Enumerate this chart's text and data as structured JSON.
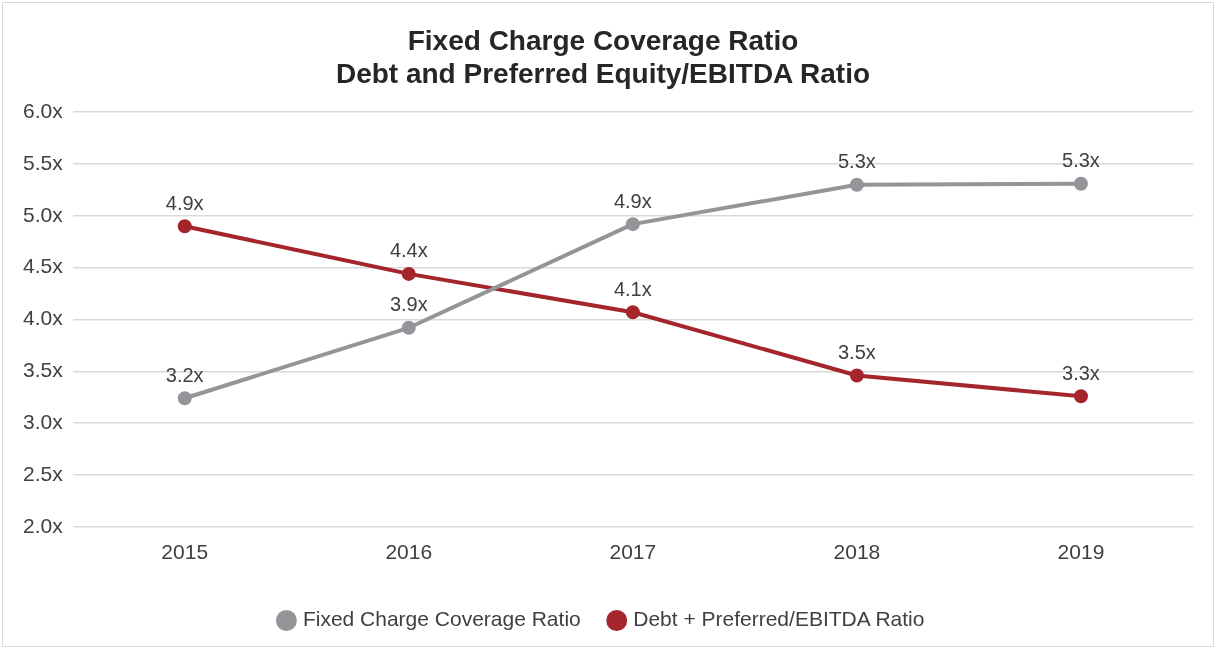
{
  "chart_data": {
    "type": "line",
    "title": "Fixed Charge Coverage Ratio\nDebt and Preferred Equity/EBITDA Ratio",
    "categories": [
      "2015",
      "2016",
      "2017",
      "2018",
      "2019"
    ],
    "series": [
      {
        "name": "Fixed Charge Coverage Ratio",
        "color": "#939598",
        "values": [
          3.24,
          3.92,
          4.92,
          5.3,
          5.31
        ],
        "value_labels": [
          "3.2x",
          "3.9x",
          "4.9x",
          "5.3x",
          "5.3x"
        ]
      },
      {
        "name": "Debt + Preferred/EBITDA Ratio",
        "color": "#a4262c",
        "values": [
          4.9,
          4.44,
          4.07,
          3.46,
          3.26
        ],
        "value_labels": [
          "4.9x",
          "4.4x",
          "4.1x",
          "3.5x",
          "3.3x"
        ]
      }
    ],
    "ylim": [
      2.0,
      6.0
    ],
    "yticks": [
      {
        "value": 2.0,
        "label": "2.0x"
      },
      {
        "value": 2.5,
        "label": "2.5x"
      },
      {
        "value": 3.0,
        "label": "3.0x"
      },
      {
        "value": 3.5,
        "label": "3.5x"
      },
      {
        "value": 4.0,
        "label": "4.0x"
      },
      {
        "value": 4.5,
        "label": "4.5x"
      },
      {
        "value": 5.0,
        "label": "5.0x"
      },
      {
        "value": 5.5,
        "label": "5.5x"
      },
      {
        "value": 6.0,
        "label": "6.0x"
      }
    ],
    "grid": "y",
    "legend": "bottom",
    "marker": "circle",
    "line_style": "solid"
  }
}
